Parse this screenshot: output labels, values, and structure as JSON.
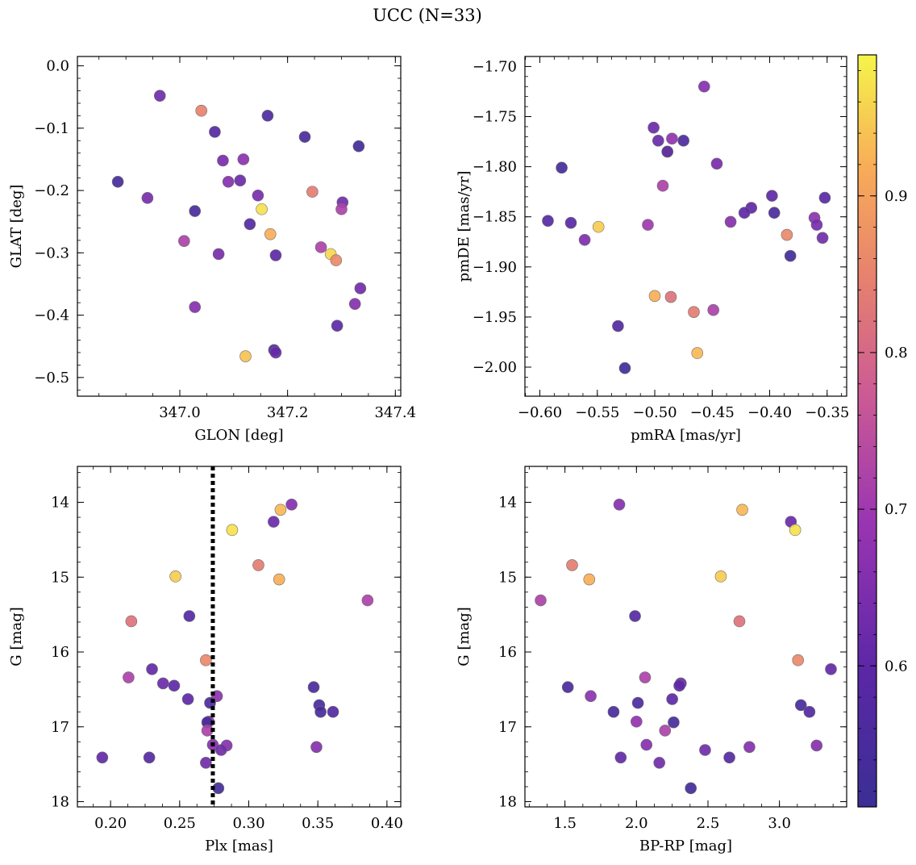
{
  "figure": {
    "title": "UCC (N=33)"
  },
  "colorbar": {
    "ticks": [
      {
        "v": 0.6,
        "label": "0.6"
      },
      {
        "v": 0.7,
        "label": "0.7"
      },
      {
        "v": 0.8,
        "label": "0.8"
      },
      {
        "v": 0.9,
        "label": "0.9"
      }
    ],
    "range": [
      0.51,
      0.99
    ]
  },
  "chart_data": [
    {
      "type": "scatter",
      "title": "UCC (N=33)",
      "xlabel": "GLON [deg]",
      "ylabel": "GLAT [deg]",
      "xlim": [
        346.81,
        347.41
      ],
      "ylim": [
        -0.53,
        0.015
      ],
      "y_inverted": false,
      "xticks": [
        {
          "v": 347.0,
          "label": "347.0"
        },
        {
          "v": 347.2,
          "label": "347.2"
        },
        {
          "v": 347.4,
          "label": "347.4"
        }
      ],
      "yticks": [
        {
          "v": 0.0,
          "label": "0.0"
        },
        {
          "v": -0.1,
          "label": "−0.1"
        },
        {
          "v": -0.2,
          "label": "−0.2"
        },
        {
          "v": -0.3,
          "label": "−0.3"
        },
        {
          "v": -0.4,
          "label": "−0.4"
        },
        {
          "v": -0.5,
          "label": "−0.5"
        }
      ],
      "points": [
        {
          "x": 346.963,
          "y": -0.048,
          "c": 0.63
        },
        {
          "x": 347.04,
          "y": -0.072,
          "c": 0.85
        },
        {
          "x": 347.163,
          "y": -0.08,
          "c": 0.56
        },
        {
          "x": 347.065,
          "y": -0.106,
          "c": 0.58
        },
        {
          "x": 347.232,
          "y": -0.114,
          "c": 0.55
        },
        {
          "x": 347.332,
          "y": -0.129,
          "c": 0.53
        },
        {
          "x": 347.08,
          "y": -0.152,
          "c": 0.64
        },
        {
          "x": 347.118,
          "y": -0.15,
          "c": 0.67
        },
        {
          "x": 346.885,
          "y": -0.186,
          "c": 0.54
        },
        {
          "x": 347.09,
          "y": -0.186,
          "c": 0.66
        },
        {
          "x": 347.112,
          "y": -0.184,
          "c": 0.62
        },
        {
          "x": 346.94,
          "y": -0.212,
          "c": 0.64
        },
        {
          "x": 347.145,
          "y": -0.208,
          "c": 0.64
        },
        {
          "x": 347.246,
          "y": -0.202,
          "c": 0.84
        },
        {
          "x": 347.302,
          "y": -0.219,
          "c": 0.63
        },
        {
          "x": 347.028,
          "y": -0.233,
          "c": 0.55
        },
        {
          "x": 347.152,
          "y": -0.23,
          "c": 0.97
        },
        {
          "x": 347.3,
          "y": -0.23,
          "c": 0.72
        },
        {
          "x": 347.13,
          "y": -0.254,
          "c": 0.57
        },
        {
          "x": 347.168,
          "y": -0.27,
          "c": 0.92
        },
        {
          "x": 347.008,
          "y": -0.281,
          "c": 0.72
        },
        {
          "x": 347.262,
          "y": -0.291,
          "c": 0.72
        },
        {
          "x": 347.072,
          "y": -0.302,
          "c": 0.64
        },
        {
          "x": 347.178,
          "y": -0.304,
          "c": 0.6
        },
        {
          "x": 347.28,
          "y": -0.302,
          "c": 0.96
        },
        {
          "x": 347.29,
          "y": -0.312,
          "c": 0.86
        },
        {
          "x": 347.335,
          "y": -0.357,
          "c": 0.63
        },
        {
          "x": 347.325,
          "y": -0.382,
          "c": 0.66
        },
        {
          "x": 347.028,
          "y": -0.387,
          "c": 0.66
        },
        {
          "x": 347.292,
          "y": -0.417,
          "c": 0.6
        },
        {
          "x": 347.175,
          "y": -0.456,
          "c": 0.58
        },
        {
          "x": 347.178,
          "y": -0.46,
          "c": 0.61
        },
        {
          "x": 347.122,
          "y": -0.466,
          "c": 0.94
        }
      ]
    },
    {
      "type": "scatter",
      "xlabel": "pmRA [mas/yr]",
      "ylabel": "pmDE [mas/yr]",
      "xlim": [
        -0.613,
        -0.333
      ],
      "ylim": [
        -2.029,
        -1.69
      ],
      "y_inverted": false,
      "xticks": [
        {
          "v": -0.6,
          "label": "−0.60"
        },
        {
          "v": -0.55,
          "label": "−0.55"
        },
        {
          "v": -0.5,
          "label": "−0.50"
        },
        {
          "v": -0.45,
          "label": "−0.45"
        },
        {
          "v": -0.4,
          "label": "−0.40"
        },
        {
          "v": -0.35,
          "label": "−0.35"
        }
      ],
      "yticks": [
        {
          "v": -1.7,
          "label": "−1.70"
        },
        {
          "v": -1.75,
          "label": "−1.75"
        },
        {
          "v": -1.8,
          "label": "−1.80"
        },
        {
          "v": -1.85,
          "label": "−1.85"
        },
        {
          "v": -1.9,
          "label": "−1.90"
        },
        {
          "v": -1.95,
          "label": "−1.95"
        },
        {
          "v": -2.0,
          "label": "−2.00"
        }
      ],
      "points": [
        {
          "x": -0.457,
          "y": -1.72,
          "c": 0.66
        },
        {
          "x": -0.501,
          "y": -1.761,
          "c": 0.62
        },
        {
          "x": -0.497,
          "y": -1.774,
          "c": 0.62
        },
        {
          "x": -0.485,
          "y": -1.772,
          "c": 0.68
        },
        {
          "x": -0.475,
          "y": -1.774,
          "c": 0.56
        },
        {
          "x": -0.489,
          "y": -1.785,
          "c": 0.93
        },
        {
          "x": -0.489,
          "y": -1.785,
          "c": 0.58
        },
        {
          "x": -0.446,
          "y": -1.797,
          "c": 0.64
        },
        {
          "x": -0.581,
          "y": -1.801,
          "c": 0.54
        },
        {
          "x": -0.493,
          "y": -1.819,
          "c": 0.72
        },
        {
          "x": -0.398,
          "y": -1.829,
          "c": 0.6
        },
        {
          "x": -0.352,
          "y": -1.831,
          "c": 0.59
        },
        {
          "x": -0.416,
          "y": -1.841,
          "c": 0.6
        },
        {
          "x": -0.396,
          "y": -1.846,
          "c": 0.55
        },
        {
          "x": -0.422,
          "y": -1.846,
          "c": 0.6
        },
        {
          "x": -0.593,
          "y": -1.854,
          "c": 0.58
        },
        {
          "x": -0.573,
          "y": -1.856,
          "c": 0.59
        },
        {
          "x": -0.434,
          "y": -1.855,
          "c": 0.66
        },
        {
          "x": -0.361,
          "y": -1.851,
          "c": 0.67
        },
        {
          "x": -0.359,
          "y": -1.858,
          "c": 0.64
        },
        {
          "x": -0.506,
          "y": -1.858,
          "c": 0.7
        },
        {
          "x": -0.549,
          "y": -1.86,
          "c": 0.95
        },
        {
          "x": -0.385,
          "y": -1.868,
          "c": 0.86
        },
        {
          "x": -0.354,
          "y": -1.871,
          "c": 0.63
        },
        {
          "x": -0.561,
          "y": -1.873,
          "c": 0.65
        },
        {
          "x": -0.382,
          "y": -1.889,
          "c": 0.53
        },
        {
          "x": -0.5,
          "y": -1.929,
          "c": 0.92
        },
        {
          "x": -0.486,
          "y": -1.93,
          "c": 0.82
        },
        {
          "x": -0.466,
          "y": -1.945,
          "c": 0.84
        },
        {
          "x": -0.449,
          "y": -1.943,
          "c": 0.72
        },
        {
          "x": -0.532,
          "y": -1.959,
          "c": 0.57
        },
        {
          "x": -0.463,
          "y": -1.986,
          "c": 0.93
        },
        {
          "x": -0.526,
          "y": -2.001,
          "c": 0.53
        }
      ]
    },
    {
      "type": "scatter",
      "xlabel": "Plx [mas]",
      "ylabel": "G [mag]",
      "xlim": [
        0.176,
        0.41
      ],
      "ylim": [
        18.07,
        13.52
      ],
      "y_inverted": true,
      "vline": {
        "x": 0.274,
        "style": "dotted"
      },
      "xticks": [
        {
          "v": 0.2,
          "label": "0.20"
        },
        {
          "v": 0.25,
          "label": "0.25"
        },
        {
          "v": 0.3,
          "label": "0.30"
        },
        {
          "v": 0.35,
          "label": "0.35"
        },
        {
          "v": 0.4,
          "label": "0.40"
        }
      ],
      "yticks": [
        {
          "v": 14,
          "label": "14"
        },
        {
          "v": 15,
          "label": "15"
        },
        {
          "v": 16,
          "label": "16"
        },
        {
          "v": 17,
          "label": "17"
        },
        {
          "v": 18,
          "label": "18"
        }
      ],
      "points": [
        {
          "x": 0.331,
          "y": 14.03,
          "c": 0.66
        },
        {
          "x": 0.323,
          "y": 14.1,
          "c": 0.93
        },
        {
          "x": 0.318,
          "y": 14.26,
          "c": 0.62
        },
        {
          "x": 0.288,
          "y": 14.37,
          "c": 0.97
        },
        {
          "x": 0.307,
          "y": 14.84,
          "c": 0.84
        },
        {
          "x": 0.322,
          "y": 15.03,
          "c": 0.92
        },
        {
          "x": 0.247,
          "y": 14.99,
          "c": 0.95
        },
        {
          "x": 0.386,
          "y": 15.31,
          "c": 0.72
        },
        {
          "x": 0.257,
          "y": 15.52,
          "c": 0.58
        },
        {
          "x": 0.215,
          "y": 15.59,
          "c": 0.82
        },
        {
          "x": 0.269,
          "y": 16.11,
          "c": 0.86
        },
        {
          "x": 0.23,
          "y": 16.23,
          "c": 0.61
        },
        {
          "x": 0.213,
          "y": 16.34,
          "c": 0.72
        },
        {
          "x": 0.238,
          "y": 16.42,
          "c": 0.62
        },
        {
          "x": 0.246,
          "y": 16.45,
          "c": 0.6
        },
        {
          "x": 0.347,
          "y": 16.47,
          "c": 0.55
        },
        {
          "x": 0.256,
          "y": 16.63,
          "c": 0.6
        },
        {
          "x": 0.277,
          "y": 16.59,
          "c": 0.67
        },
        {
          "x": 0.272,
          "y": 16.68,
          "c": 0.56
        },
        {
          "x": 0.351,
          "y": 16.71,
          "c": 0.55
        },
        {
          "x": 0.352,
          "y": 16.8,
          "c": 0.55
        },
        {
          "x": 0.361,
          "y": 16.8,
          "c": 0.57
        },
        {
          "x": 0.271,
          "y": 16.93,
          "c": 0.68
        },
        {
          "x": 0.27,
          "y": 16.94,
          "c": 0.55
        },
        {
          "x": 0.27,
          "y": 17.05,
          "c": 0.72
        },
        {
          "x": 0.274,
          "y": 17.24,
          "c": 0.66
        },
        {
          "x": 0.284,
          "y": 17.25,
          "c": 0.66
        },
        {
          "x": 0.349,
          "y": 17.27,
          "c": 0.66
        },
        {
          "x": 0.28,
          "y": 17.31,
          "c": 0.63
        },
        {
          "x": 0.194,
          "y": 17.41,
          "c": 0.61
        },
        {
          "x": 0.228,
          "y": 17.41,
          "c": 0.58
        },
        {
          "x": 0.269,
          "y": 17.48,
          "c": 0.63
        },
        {
          "x": 0.278,
          "y": 17.82,
          "c": 0.53
        }
      ]
    },
    {
      "type": "scatter",
      "xlabel": "BP-RP [mag]",
      "ylabel": "G [mag]",
      "xlim": [
        1.22,
        3.47
      ],
      "ylim": [
        18.07,
        13.52
      ],
      "y_inverted": true,
      "xticks": [
        {
          "v": 1.5,
          "label": "1.5"
        },
        {
          "v": 2.0,
          "label": "2.0"
        },
        {
          "v": 2.5,
          "label": "2.5"
        },
        {
          "v": 3.0,
          "label": "3.0"
        }
      ],
      "yticks": [
        {
          "v": 14,
          "label": "14"
        },
        {
          "v": 15,
          "label": "15"
        },
        {
          "v": 16,
          "label": "16"
        },
        {
          "v": 17,
          "label": "17"
        },
        {
          "v": 18,
          "label": "18"
        }
      ],
      "points": [
        {
          "x": 1.88,
          "y": 14.03,
          "c": 0.66
        },
        {
          "x": 2.74,
          "y": 14.1,
          "c": 0.93
        },
        {
          "x": 3.08,
          "y": 14.26,
          "c": 0.62
        },
        {
          "x": 3.11,
          "y": 14.37,
          "c": 0.97
        },
        {
          "x": 1.55,
          "y": 14.84,
          "c": 0.84
        },
        {
          "x": 1.67,
          "y": 15.03,
          "c": 0.92
        },
        {
          "x": 2.59,
          "y": 14.99,
          "c": 0.95
        },
        {
          "x": 1.33,
          "y": 15.31,
          "c": 0.72
        },
        {
          "x": 1.99,
          "y": 15.52,
          "c": 0.58
        },
        {
          "x": 2.72,
          "y": 15.59,
          "c": 0.82
        },
        {
          "x": 3.13,
          "y": 16.11,
          "c": 0.86
        },
        {
          "x": 3.36,
          "y": 16.23,
          "c": 0.61
        },
        {
          "x": 2.06,
          "y": 16.34,
          "c": 0.72
        },
        {
          "x": 2.31,
          "y": 16.42,
          "c": 0.62
        },
        {
          "x": 2.3,
          "y": 16.45,
          "c": 0.6
        },
        {
          "x": 1.52,
          "y": 16.47,
          "c": 0.55
        },
        {
          "x": 2.25,
          "y": 16.63,
          "c": 0.6
        },
        {
          "x": 1.68,
          "y": 16.59,
          "c": 0.67
        },
        {
          "x": 2.01,
          "y": 16.68,
          "c": 0.56
        },
        {
          "x": 3.15,
          "y": 16.71,
          "c": 0.55
        },
        {
          "x": 1.84,
          "y": 16.8,
          "c": 0.55
        },
        {
          "x": 3.21,
          "y": 16.8,
          "c": 0.57
        },
        {
          "x": 2.0,
          "y": 16.93,
          "c": 0.68
        },
        {
          "x": 2.26,
          "y": 16.94,
          "c": 0.55
        },
        {
          "x": 2.2,
          "y": 17.05,
          "c": 0.72
        },
        {
          "x": 2.07,
          "y": 17.24,
          "c": 0.66
        },
        {
          "x": 3.26,
          "y": 17.25,
          "c": 0.66
        },
        {
          "x": 2.79,
          "y": 17.27,
          "c": 0.66
        },
        {
          "x": 2.48,
          "y": 17.31,
          "c": 0.63
        },
        {
          "x": 1.89,
          "y": 17.41,
          "c": 0.61
        },
        {
          "x": 2.65,
          "y": 17.41,
          "c": 0.58
        },
        {
          "x": 2.16,
          "y": 17.48,
          "c": 0.63
        },
        {
          "x": 2.38,
          "y": 17.82,
          "c": 0.53
        }
      ]
    }
  ]
}
